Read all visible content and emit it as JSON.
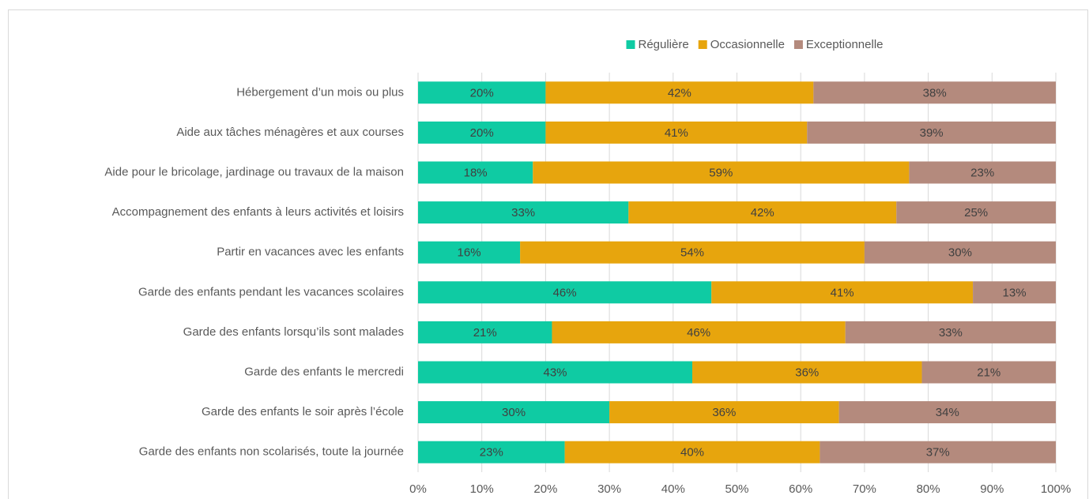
{
  "chart_data": {
    "type": "stacked-bar-horizontal",
    "categories": [
      "Hébergement d’un mois ou plus",
      "Aide aux tâches ménagères et aux courses",
      "Aide pour le bricolage, jardinage ou travaux de la maison",
      "Accompagnement des enfants à leurs activités et loisirs",
      "Partir en vacances avec les enfants",
      "Garde des enfants pendant les vacances scolaires",
      "Garde des enfants lorsqu’ils sont malades",
      "Garde des enfants le mercredi",
      "Garde des enfants le soir après l’école",
      "Garde des enfants non scolarisés, toute la journée"
    ],
    "series": [
      {
        "name": "Régulière",
        "color": "#0fcba3",
        "values": [
          20,
          20,
          18,
          33,
          16,
          46,
          21,
          43,
          30,
          23
        ],
        "value_labels": [
          "20%",
          "20%",
          "18%",
          "33%",
          "16%",
          "46%",
          "21%",
          "43%",
          "30%",
          "23%"
        ]
      },
      {
        "name": "Occasionnelle",
        "color": "#e7a50d",
        "values": [
          42,
          41,
          59,
          42,
          54,
          41,
          46,
          36,
          36,
          40
        ],
        "value_labels": [
          "42%",
          "41%",
          "59%",
          "42%",
          "54%",
          "41%",
          "46%",
          "36%",
          "36%",
          "40%"
        ]
      },
      {
        "name": "Exceptionnelle",
        "color": "#b48a7d",
        "values": [
          38,
          39,
          23,
          25,
          30,
          13,
          33,
          21,
          34,
          37
        ],
        "value_labels": [
          "38%",
          "39%",
          "23%",
          "25%",
          "30%",
          "13%",
          "33%",
          "21%",
          "34%",
          "37%"
        ]
      }
    ],
    "xlim": [
      0,
      100
    ],
    "xticks": [
      {
        "value": 0,
        "label": "0%"
      },
      {
        "value": 10,
        "label": "10%"
      },
      {
        "value": 20,
        "label": "20%"
      },
      {
        "value": 30,
        "label": "30%"
      },
      {
        "value": 40,
        "label": "40%"
      },
      {
        "value": 50,
        "label": "50%"
      },
      {
        "value": 60,
        "label": "60%"
      },
      {
        "value": 70,
        "label": "70%"
      },
      {
        "value": 80,
        "label": "80%"
      },
      {
        "value": 90,
        "label": "90%"
      },
      {
        "value": 100,
        "label": "100%"
      }
    ],
    "grid": true,
    "legend": "top"
  }
}
